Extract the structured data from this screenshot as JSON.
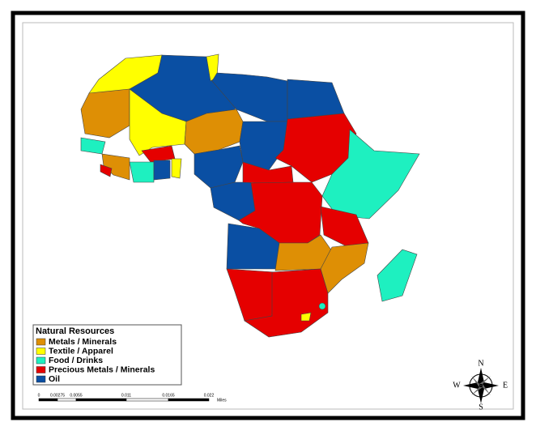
{
  "legend": {
    "title": "Natural Resources",
    "items": [
      {
        "label": "Metals / Minerals",
        "color": "#de8f05"
      },
      {
        "label": "Textile / Apparel",
        "color": "#ffff00"
      },
      {
        "label": "Food / Drinks",
        "color": "#1ef0c0"
      },
      {
        "label": "Precious Metals / Minerals",
        "color": "#e50000"
      },
      {
        "label": "Oil",
        "color": "#0a4fa3"
      }
    ]
  },
  "scale_bar": {
    "ticks": [
      "0",
      "0.00275",
      "0.0055",
      "0.011",
      "0.0165",
      "0.022"
    ],
    "unit": "Miles"
  },
  "compass": {
    "north": "N",
    "south": "S",
    "east": "E",
    "west": "W"
  }
}
